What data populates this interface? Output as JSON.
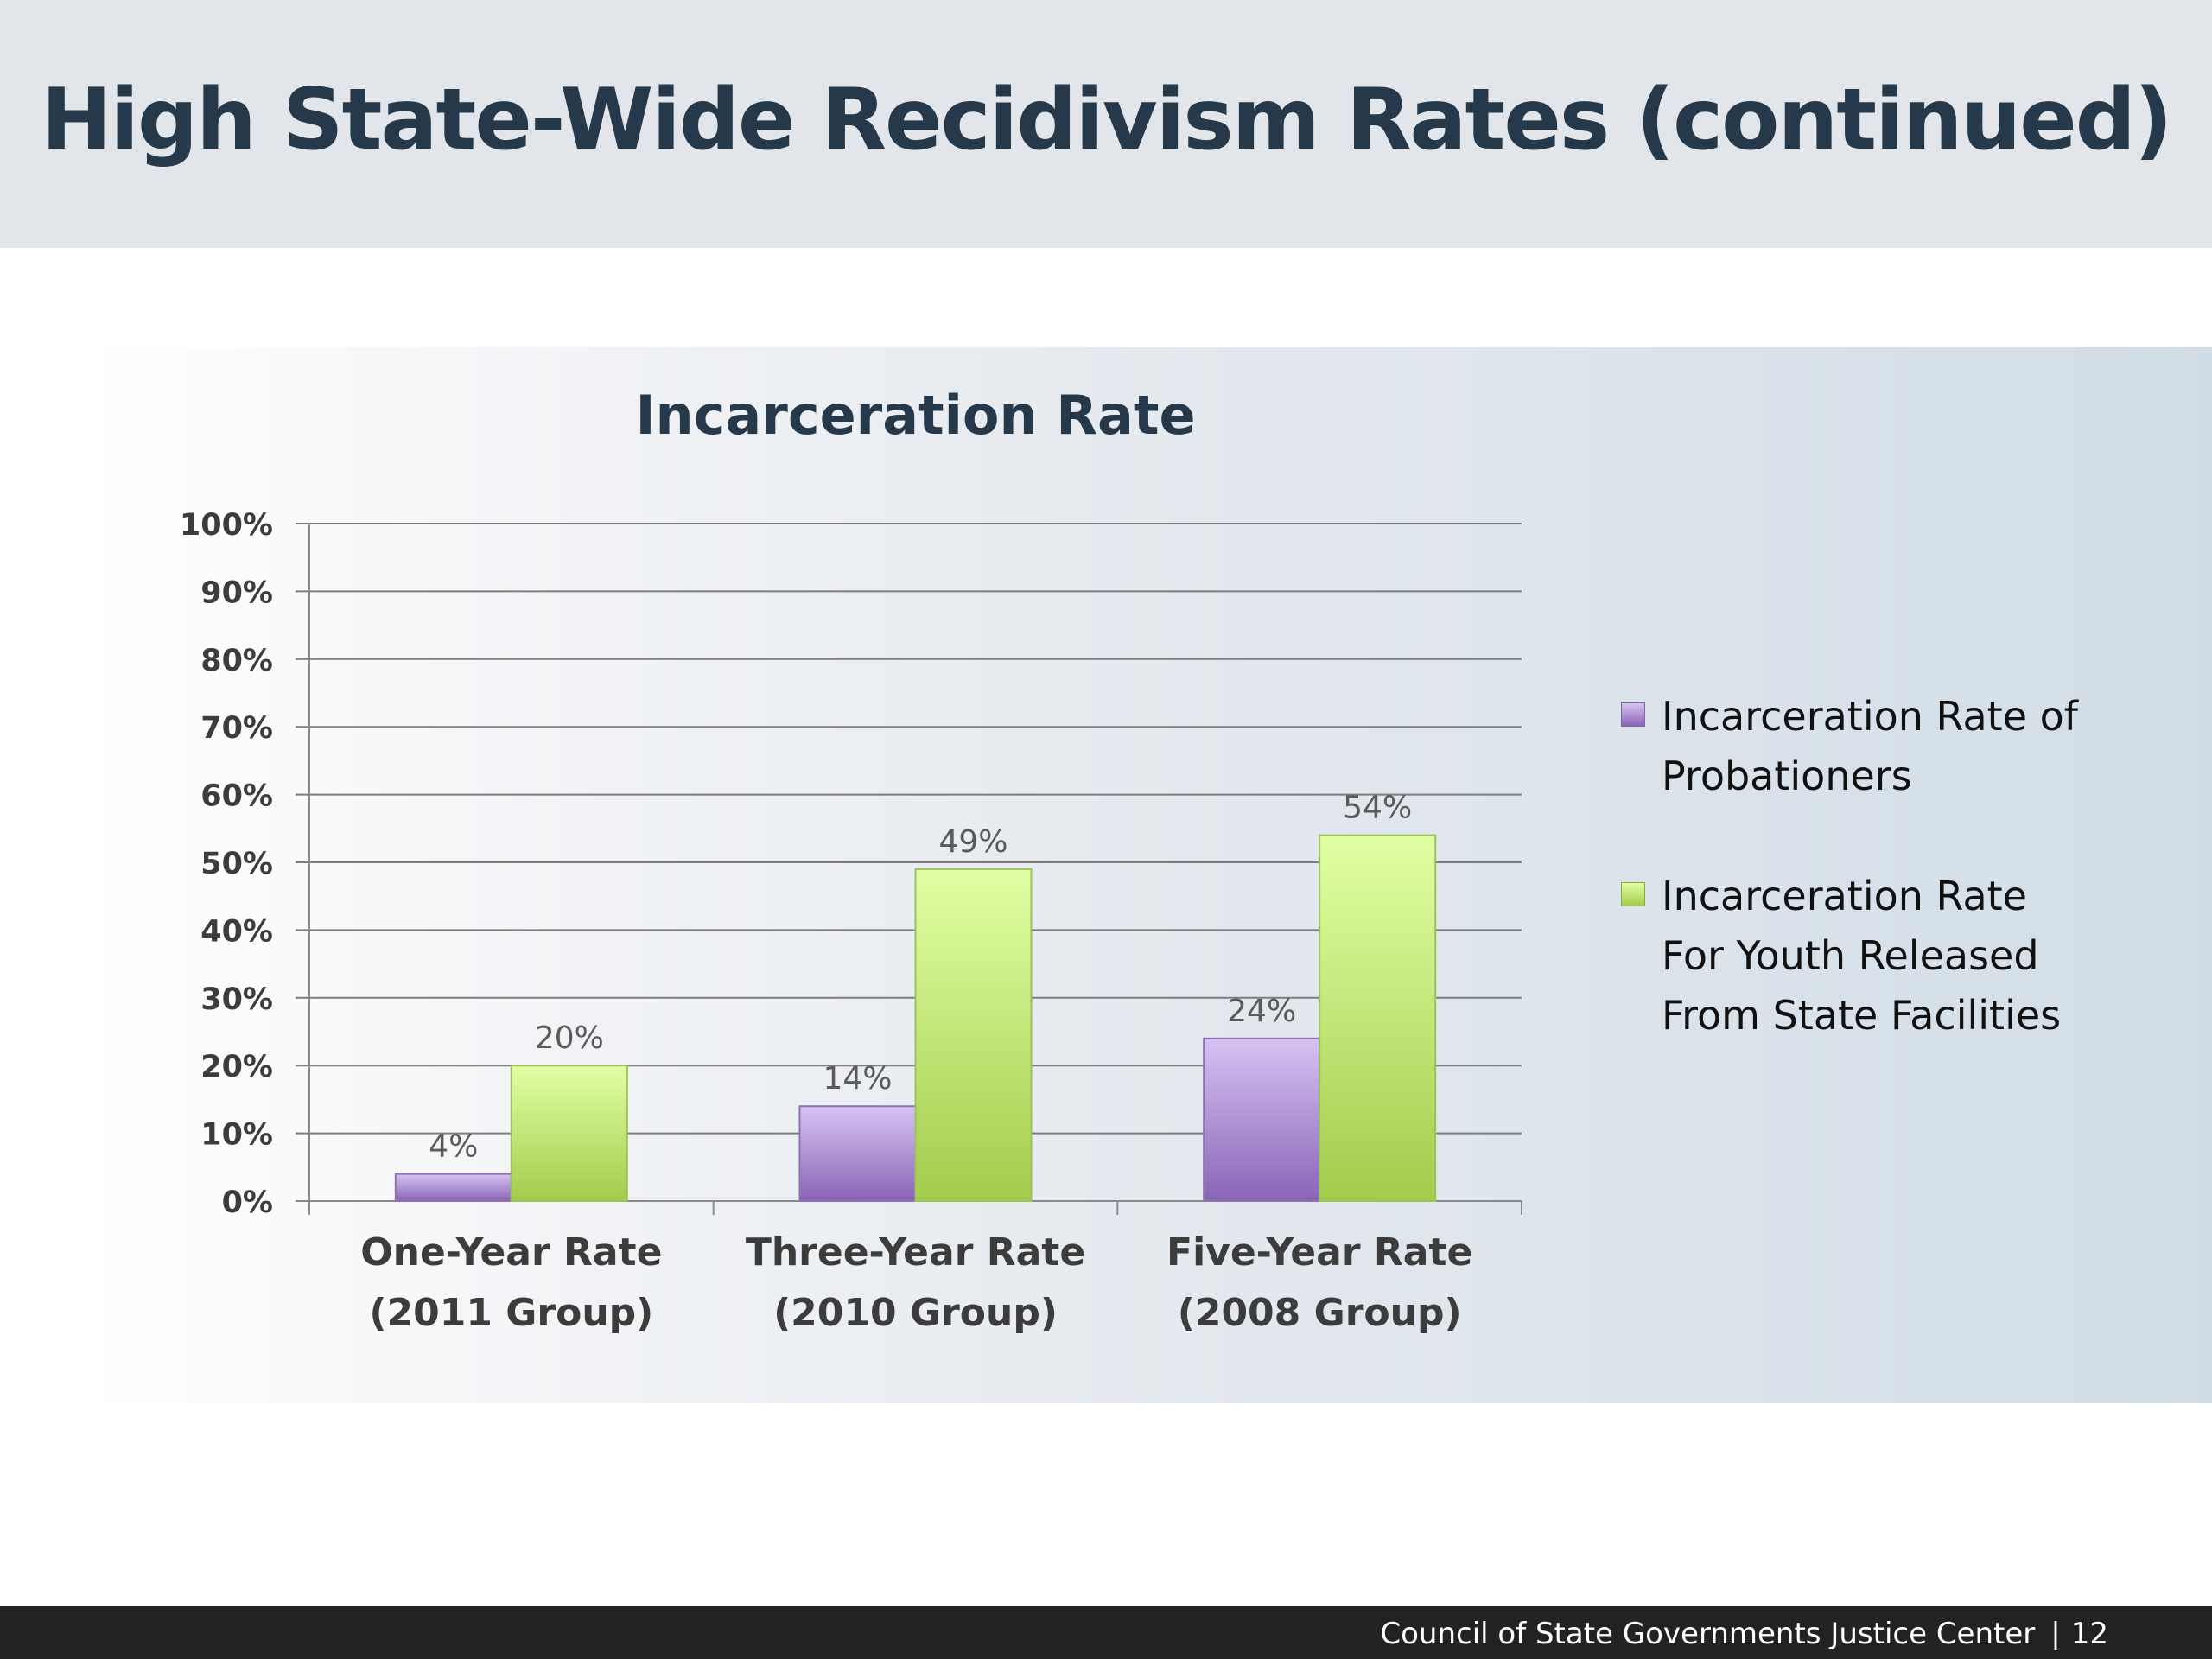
{
  "slide": {
    "title": "High State-Wide Recidivism Rates (continued)"
  },
  "footer": {
    "org": "Council of State Governments Justice Center",
    "page_number": "12"
  },
  "colors": {
    "probationers": "#9b7fc8",
    "youth_released": "#b5d868",
    "header_bg": "#e2e6ea",
    "title_text": "#26394b",
    "footer_bg": "#202224"
  },
  "chart_data": {
    "type": "bar",
    "title": "Incarceration Rate",
    "categories": [
      [
        "One-Year Rate",
        "(2011 Group)"
      ],
      [
        "Three-Year Rate",
        "(2010 Group)"
      ],
      [
        "Five-Year Rate",
        "(2008 Group)"
      ]
    ],
    "series": [
      {
        "name": "Incarceration Rate of Probationers",
        "legend_lines": [
          "Incarceration Rate of",
          "Probationers"
        ],
        "values": [
          4,
          14,
          24
        ],
        "labels": [
          "4%",
          "14%",
          "24%"
        ],
        "color_top": "#d6c3f3",
        "color_bottom": "#8a64b6"
      },
      {
        "name": "Incarceration Rate For Youth Released From State Facilities",
        "legend_lines": [
          "Incarceration Rate",
          "For Youth Released",
          "From State Facilities"
        ],
        "values": [
          20,
          49,
          54
        ],
        "labels": [
          "20%",
          "49%",
          "54%"
        ],
        "color_top": "#e2ffa4",
        "color_bottom": "#a3cc4c"
      }
    ],
    "yticks": [
      "0%",
      "10%",
      "20%",
      "30%",
      "40%",
      "50%",
      "60%",
      "70%",
      "80%",
      "90%",
      "100%"
    ],
    "ylim": [
      0,
      100
    ],
    "xlabel": "",
    "ylabel": "",
    "grid": true,
    "legend_position": "right"
  }
}
